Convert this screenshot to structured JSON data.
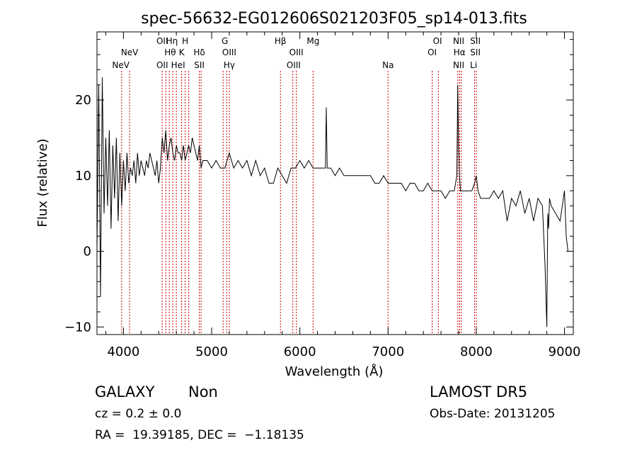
{
  "chart_data": {
    "type": "line",
    "title": "spec-56632-EG012606S021203F05_sp14-013.fits",
    "xlabel": "Wavelength (Å)",
    "ylabel": "Flux (relative)",
    "xlim": [
      3700,
      9100
    ],
    "ylim": [
      -11,
      29
    ],
    "xticks": [
      4000,
      5000,
      6000,
      7000,
      8000,
      9000
    ],
    "yticks": [
      -10,
      0,
      10,
      20
    ],
    "grid": false,
    "line_color": "#000000",
    "marker_color": "#cc0000",
    "series": [
      {
        "values_x": [
          3700,
          3720,
          3740,
          3760,
          3780,
          3800,
          3820,
          3840,
          3860,
          3880,
          3900,
          3920,
          3940,
          3960,
          3980,
          4000,
          4020,
          4040,
          4060,
          4080,
          4100,
          4120,
          4140,
          4160,
          4180,
          4200,
          4220,
          4240,
          4260,
          4280,
          4300,
          4320,
          4340,
          4360,
          4380,
          4400,
          4420,
          4440,
          4460,
          4480,
          4500,
          4520,
          4540,
          4560,
          4580,
          4600,
          4620,
          4640,
          4660,
          4680,
          4700,
          4720,
          4740,
          4760,
          4780,
          4800,
          4820,
          4840,
          4860,
          4880,
          4900,
          4950,
          5000,
          5050,
          5100,
          5150,
          5200,
          5250,
          5300,
          5350,
          5400,
          5450,
          5500,
          5550,
          5600,
          5650,
          5700,
          5750,
          5800,
          5850,
          5900,
          5950,
          6000,
          6050,
          6100,
          6150,
          6200,
          6250,
          6290,
          6300,
          6310,
          6350,
          6400,
          6450,
          6500,
          6550,
          6600,
          6650,
          6700,
          6750,
          6800,
          6850,
          6900,
          6950,
          7000,
          7050,
          7100,
          7150,
          7200,
          7250,
          7300,
          7350,
          7400,
          7450,
          7500,
          7550,
          7600,
          7650,
          7700,
          7750,
          7780,
          7790,
          7800,
          7810,
          7820,
          7830,
          7850,
          7900,
          7950,
          7980,
          8000,
          8020,
          8050,
          8100,
          8150,
          8200,
          8250,
          8300,
          8350,
          8400,
          8450,
          8500,
          8550,
          8600,
          8650,
          8700,
          8750,
          8780,
          8800,
          8810,
          8820,
          8830,
          8850,
          8900,
          8950,
          9000,
          9020,
          9040
        ],
        "values_y": [
          0,
          22,
          -6,
          23,
          5,
          15,
          6,
          16,
          3,
          14,
          7,
          15,
          4,
          13,
          6,
          12,
          8,
          13,
          9,
          11,
          10,
          12,
          9,
          13,
          10,
          12,
          11,
          10,
          12,
          11,
          13,
          12,
          11,
          10,
          12,
          9,
          11,
          15,
          13,
          16,
          12,
          14,
          15,
          13,
          12,
          14,
          13,
          13,
          12,
          14,
          12,
          13,
          14,
          13,
          15,
          14,
          13,
          12,
          14,
          11,
          12,
          12,
          11,
          12,
          11,
          11,
          13,
          11,
          12,
          11,
          12,
          10,
          12,
          10,
          11,
          9,
          9,
          11,
          10,
          9,
          11,
          11,
          12,
          11,
          12,
          11,
          11,
          11,
          11,
          19,
          11,
          11,
          10,
          11,
          10,
          10,
          10,
          10,
          10,
          10,
          10,
          9,
          9,
          10,
          9,
          9,
          9,
          9,
          8,
          9,
          9,
          8,
          8,
          9,
          8,
          8,
          8,
          7,
          8,
          8,
          10,
          22,
          14,
          10,
          8,
          8,
          8,
          8,
          8,
          9,
          10,
          8,
          7,
          7,
          7,
          8,
          7,
          8,
          4,
          7,
          6,
          8,
          5,
          7,
          4,
          7,
          6,
          -2,
          -10,
          5,
          3,
          7,
          6,
          5,
          4,
          8,
          2,
          0
        ]
      }
    ],
    "line_markers": [
      {
        "label": "NeV",
        "x": 3970,
        "row": 3
      },
      {
        "label": "NeV",
        "x": 4070,
        "row": 2
      },
      {
        "label": "OII",
        "x": 4440,
        "row": 1
      },
      {
        "label": "Hη",
        "x": 4550,
        "row": 1
      },
      {
        "label": "H",
        "x": 4700,
        "row": 1
      },
      {
        "label": "Hθ",
        "x": 4530,
        "row": 2
      },
      {
        "label": "K",
        "x": 4660,
        "row": 2
      },
      {
        "label": "Hδ",
        "x": 4860,
        "row": 2
      },
      {
        "label": "OII",
        "x": 4440,
        "row": 3
      },
      {
        "label": "HeI",
        "x": 4620,
        "row": 3
      },
      {
        "label": "SII",
        "x": 4860,
        "row": 3
      },
      {
        "label": "G",
        "x": 5150,
        "row": 1
      },
      {
        "label": "OIII",
        "x": 5200,
        "row": 2
      },
      {
        "label": "Hγ",
        "x": 5200,
        "row": 3
      },
      {
        "label": "Hβ",
        "x": 5780,
        "row": 1
      },
      {
        "label": "OIII",
        "x": 5960,
        "row": 2
      },
      {
        "label": "OIII",
        "x": 5930,
        "row": 3
      },
      {
        "label": "Mg",
        "x": 6150,
        "row": 1
      },
      {
        "label": "Na",
        "x": 7000,
        "row": 3
      },
      {
        "label": "OI",
        "x": 7560,
        "row": 1
      },
      {
        "label": "OI",
        "x": 7500,
        "row": 2
      },
      {
        "label": "NII",
        "x": 7800,
        "row": 1
      },
      {
        "label": "Hα",
        "x": 7810,
        "row": 2
      },
      {
        "label": "NII",
        "x": 7800,
        "row": 3
      },
      {
        "label": "SII",
        "x": 7990,
        "row": 1
      },
      {
        "label": "SII",
        "x": 7990,
        "row": 2
      },
      {
        "label": "Li",
        "x": 7970,
        "row": 3
      }
    ],
    "marker_lines_x": [
      3980,
      4070,
      4440,
      4480,
      4520,
      4560,
      4600,
      4660,
      4700,
      4740,
      4860,
      4880,
      5130,
      5170,
      5200,
      5780,
      5920,
      5960,
      6150,
      7000,
      7500,
      7570,
      7790,
      7810,
      7830,
      7980,
      8000
    ]
  },
  "footer": {
    "class_label": "GALAXY",
    "subclass_label": "Non",
    "cz": "cz = 0.2 ± 0.0",
    "radec": "RA =  19.39185, DEC =  −1.18135",
    "survey": "LAMOST DR5",
    "obs_date": "Obs-Date: 20131205"
  }
}
